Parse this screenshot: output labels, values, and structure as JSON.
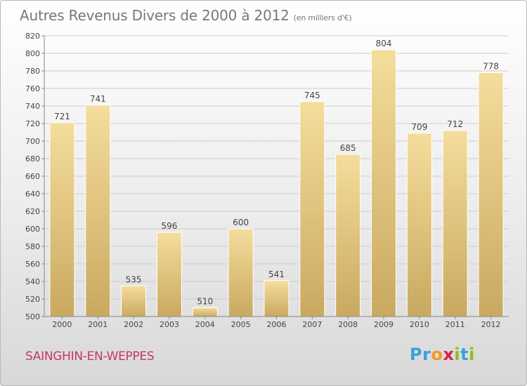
{
  "header": {
    "title": "Autres Revenus Divers de 2000 à 2012",
    "subtitle": "(en milliers d'€)"
  },
  "footer": {
    "commune": "SAINGHIN-EN-WEPPES",
    "logo_letters": [
      "P",
      "r",
      "o",
      "x",
      "i",
      "t",
      "i"
    ],
    "logo_colors": [
      "#3aa0d8",
      "#3aa0d8",
      "#f29a1f",
      "#d8204a",
      "#8cbd24",
      "#3aa0d8",
      "#8cbd24"
    ]
  },
  "colors": {
    "bar_light": "#f5dd9c",
    "bar_dark": "#c9a960",
    "grid": "#cccccc",
    "axis_text": "#444444"
  },
  "chart_data": {
    "type": "bar",
    "categories": [
      "2000",
      "2001",
      "2002",
      "2003",
      "2004",
      "2005",
      "2006",
      "2007",
      "2008",
      "2009",
      "2010",
      "2011",
      "2012"
    ],
    "values": [
      721,
      741,
      535,
      596,
      510,
      600,
      541,
      745,
      685,
      804,
      709,
      712,
      778
    ],
    "ylim": [
      500,
      820
    ],
    "yticks": [
      500,
      520,
      540,
      560,
      580,
      600,
      620,
      640,
      660,
      680,
      700,
      720,
      740,
      760,
      780,
      800,
      820
    ],
    "grid": true
  }
}
